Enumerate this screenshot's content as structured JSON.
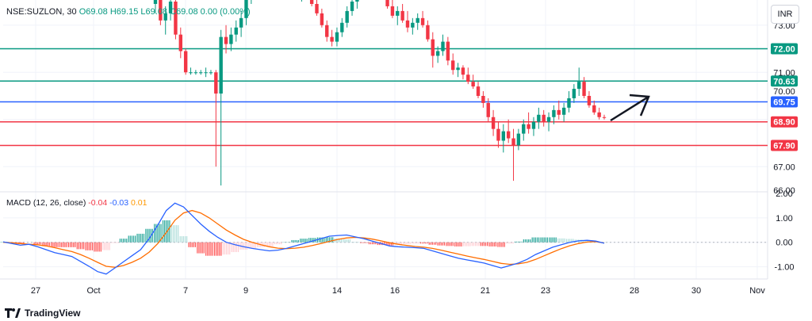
{
  "header": {
    "symbol": "NSE:SUZLON, 30",
    "open": "O69.08",
    "high": "H69.15",
    "low": "L69.08",
    "close": "C69.08",
    "change": "0.00 (0.00%)"
  },
  "currency_label": "INR",
  "brand": "TradingView",
  "colors": {
    "up": "#089981",
    "down": "#f23645",
    "green_level": "#089981",
    "blue_level": "#2962ff",
    "red_level": "#f23645",
    "macd_line": "#2962ff",
    "signal_line": "#ff6d00",
    "grid": "#f0f3fa",
    "axis_text": "#131722"
  },
  "chart_data": [
    {
      "type": "candlestick",
      "title": "NSE:SUZLON, 30",
      "ylim": [
        66.0,
        74.0
      ],
      "y_ticks": [
        "73.00",
        "71.00",
        "70.00",
        "67.00",
        "66.00"
      ],
      "x_ticks": [
        "27",
        "Oct",
        "7",
        "9",
        "14",
        "16",
        "21",
        "23",
        "28",
        "30",
        "Nov"
      ],
      "horizontal_levels": [
        {
          "value": 72.0,
          "label": "72.00",
          "color": "green"
        },
        {
          "value": 70.63,
          "label": "70.63",
          "color": "green"
        },
        {
          "value": 69.75,
          "label": "69.75",
          "color": "blue"
        },
        {
          "value": 68.9,
          "label": "68.90",
          "color": "red"
        },
        {
          "value": 67.9,
          "label": "67.90",
          "color": "red"
        }
      ],
      "last_price": 69.08,
      "annotation": "arrow pointing up-right",
      "series": [
        {
          "name": "price",
          "values": [
            [
              73.9,
              75.0,
              73.5,
              74.6
            ],
            [
              74.6,
              75.2,
              73.0,
              73.2
            ],
            [
              73.2,
              73.8,
              72.6,
              73.5
            ],
            [
              73.5,
              74.4,
              73.2,
              74.0
            ],
            [
              74.0,
              74.2,
              72.4,
              72.6
            ],
            [
              72.6,
              72.9,
              71.6,
              71.9
            ],
            [
              71.9,
              72.0,
              70.9,
              71.0
            ],
            [
              71.0,
              71.2,
              70.9,
              71.0
            ],
            [
              71.0,
              71.1,
              70.9,
              71.0
            ],
            [
              71.0,
              71.1,
              70.9,
              71.0
            ],
            [
              71.0,
              71.2,
              70.8,
              71.0
            ],
            [
              71.0,
              71.1,
              70.9,
              71.0
            ],
            [
              71.0,
              71.1,
              67.0,
              70.1
            ],
            [
              70.1,
              72.8,
              66.2,
              72.5
            ],
            [
              72.5,
              73.0,
              71.8,
              72.2
            ],
            [
              72.2,
              72.9,
              71.9,
              72.6
            ],
            [
              72.6,
              73.2,
              72.3,
              72.9
            ],
            [
              72.9,
              73.6,
              72.5,
              73.3
            ],
            [
              73.3,
              74.4,
              73.0,
              74.2
            ],
            [
              74.2,
              75.0,
              73.9,
              74.8
            ],
            [
              74.8,
              75.3,
              74.5,
              75.0
            ],
            [
              75.0,
              75.5,
              74.8,
              75.2
            ],
            [
              75.2,
              75.6,
              74.9,
              75.0
            ],
            [
              75.0,
              75.3,
              74.7,
              74.9
            ],
            [
              74.9,
              75.2,
              74.6,
              74.8
            ],
            [
              74.8,
              75.0,
              74.5,
              74.6
            ],
            [
              74.6,
              74.9,
              74.3,
              74.7
            ],
            [
              74.7,
              75.0,
              74.4,
              74.5
            ],
            [
              74.5,
              74.8,
              74.2,
              74.3
            ],
            [
              74.3,
              74.6,
              74.0,
              74.4
            ],
            [
              74.4,
              74.7,
              74.1,
              74.2
            ],
            [
              74.2,
              74.4,
              73.8,
              73.9
            ],
            [
              73.9,
              74.1,
              73.4,
              73.5
            ],
            [
              73.5,
              73.7,
              72.9,
              73.0
            ],
            [
              73.0,
              73.2,
              72.3,
              72.5
            ],
            [
              72.5,
              72.8,
              72.1,
              72.3
            ],
            [
              72.3,
              72.9,
              72.1,
              72.7
            ],
            [
              72.7,
              73.3,
              72.5,
              73.1
            ],
            [
              73.1,
              73.8,
              72.9,
              73.6
            ],
            [
              73.6,
              74.2,
              73.4,
              74.0
            ],
            [
              74.0,
              74.5,
              73.7,
              74.3
            ],
            [
              74.3,
              74.8,
              74.1,
              74.6
            ],
            [
              74.6,
              75.0,
              74.3,
              74.5
            ],
            [
              74.5,
              75.1,
              74.2,
              74.9
            ],
            [
              74.9,
              75.2,
              74.6,
              74.7
            ],
            [
              74.7,
              74.9,
              74.1,
              74.2
            ],
            [
              74.2,
              74.4,
              73.7,
              73.8
            ],
            [
              73.8,
              74.1,
              73.3,
              73.4
            ],
            [
              73.4,
              73.8,
              73.0,
              73.6
            ],
            [
              73.6,
              73.9,
              73.1,
              73.2
            ],
            [
              73.2,
              73.6,
              72.7,
              72.9
            ],
            [
              72.9,
              73.3,
              72.6,
              73.1
            ],
            [
              73.1,
              73.5,
              72.8,
              73.3
            ],
            [
              73.3,
              73.6,
              72.9,
              73.0
            ],
            [
              73.0,
              73.2,
              72.3,
              72.4
            ],
            [
              72.4,
              72.7,
              71.2,
              71.7
            ],
            [
              71.7,
              72.1,
              71.4,
              71.9
            ],
            [
              71.9,
              72.6,
              71.7,
              72.3
            ],
            [
              72.3,
              72.5,
              71.3,
              71.5
            ],
            [
              71.5,
              71.8,
              70.9,
              71.1
            ],
            [
              71.1,
              71.4,
              70.8,
              71.2
            ],
            [
              71.2,
              71.3,
              70.7,
              70.9
            ],
            [
              70.9,
              71.2,
              70.5,
              70.6
            ],
            [
              70.6,
              70.9,
              70.3,
              70.4
            ],
            [
              70.4,
              70.6,
              69.9,
              70.0
            ],
            [
              70.0,
              70.2,
              69.5,
              69.7
            ],
            [
              69.7,
              69.9,
              68.9,
              69.1
            ],
            [
              69.1,
              69.4,
              68.3,
              68.6
            ],
            [
              68.6,
              68.9,
              67.8,
              68.1
            ],
            [
              68.1,
              68.8,
              67.6,
              68.5
            ],
            [
              68.5,
              69.0,
              68.0,
              68.2
            ],
            [
              68.2,
              68.6,
              66.4,
              67.9
            ],
            [
              67.9,
              68.6,
              67.7,
              68.4
            ],
            [
              68.4,
              69.0,
              68.1,
              68.8
            ],
            [
              68.8,
              69.3,
              68.4,
              68.6
            ],
            [
              68.6,
              69.1,
              68.3,
              68.9
            ],
            [
              68.9,
              69.5,
              68.6,
              69.2
            ],
            [
              69.2,
              69.4,
              68.7,
              68.9
            ],
            [
              68.9,
              69.3,
              68.5,
              69.1
            ],
            [
              69.1,
              69.6,
              68.8,
              69.4
            ],
            [
              69.4,
              69.8,
              69.0,
              69.2
            ],
            [
              69.2,
              69.7,
              68.9,
              69.5
            ],
            [
              69.5,
              70.2,
              69.3,
              69.9
            ],
            [
              69.9,
              70.5,
              69.7,
              70.3
            ],
            [
              70.3,
              71.2,
              70.0,
              70.6
            ],
            [
              70.6,
              70.8,
              69.9,
              70.0
            ],
            [
              70.0,
              70.2,
              69.5,
              69.6
            ],
            [
              69.6,
              69.8,
              69.2,
              69.3
            ],
            [
              69.3,
              69.5,
              69.0,
              69.1
            ],
            [
              69.1,
              69.2,
              69.0,
              69.08
            ]
          ]
        }
      ]
    },
    {
      "type": "line",
      "title": "MACD (12, 26, close)",
      "legend_values": [
        "-0.04",
        "-0.03",
        "0.01"
      ],
      "ylim": [
        -1.5,
        2.0
      ],
      "y_ticks": [
        "2.00",
        "1.00",
        "0.00",
        "-1.00"
      ],
      "series": [
        {
          "name": "MACD",
          "values": [
            0.02,
            -0.05,
            -0.12,
            -0.08,
            -0.18,
            -0.3,
            -0.42,
            -0.5,
            -0.58,
            -0.78,
            -0.98,
            -1.2,
            -1.3,
            -1.05,
            -0.8,
            -0.55,
            -0.3,
            0.15,
            0.7,
            1.3,
            1.6,
            1.45,
            1.1,
            0.75,
            0.45,
            0.2,
            0.0,
            -0.1,
            -0.18,
            -0.25,
            -0.3,
            -0.35,
            -0.32,
            -0.25,
            -0.15,
            -0.05,
            0.05,
            0.15,
            0.25,
            0.28,
            0.3,
            0.22,
            0.15,
            0.05,
            -0.05,
            -0.15,
            -0.18,
            -0.2,
            -0.22,
            -0.25,
            -0.35,
            -0.45,
            -0.55,
            -0.65,
            -0.72,
            -0.78,
            -0.85,
            -0.95,
            -1.05,
            -0.95,
            -0.85,
            -0.7,
            -0.5,
            -0.35,
            -0.2,
            -0.1,
            0.0,
            0.06,
            0.08,
            0.05,
            -0.04
          ]
        },
        {
          "name": "Signal",
          "values": [
            0.0,
            -0.02,
            -0.05,
            -0.08,
            -0.1,
            -0.15,
            -0.22,
            -0.3,
            -0.38,
            -0.5,
            -0.65,
            -0.82,
            -0.98,
            -1.02,
            -0.95,
            -0.82,
            -0.65,
            -0.4,
            -0.05,
            0.4,
            0.9,
            1.2,
            1.3,
            1.2,
            1.0,
            0.75,
            0.5,
            0.3,
            0.12,
            0.0,
            -0.1,
            -0.18,
            -0.24,
            -0.26,
            -0.24,
            -0.2,
            -0.13,
            -0.05,
            0.04,
            0.12,
            0.18,
            0.2,
            0.18,
            0.13,
            0.06,
            -0.02,
            -0.08,
            -0.13,
            -0.17,
            -0.2,
            -0.25,
            -0.32,
            -0.4,
            -0.48,
            -0.56,
            -0.63,
            -0.7,
            -0.78,
            -0.86,
            -0.9,
            -0.88,
            -0.82,
            -0.7,
            -0.55,
            -0.4,
            -0.26,
            -0.14,
            -0.05,
            0.01,
            0.03,
            -0.03
          ]
        },
        {
          "name": "Histogram",
          "values": [
            0.02,
            -0.03,
            -0.07,
            0.0,
            -0.08,
            -0.15,
            -0.2,
            -0.2,
            -0.2,
            -0.28,
            -0.33,
            -0.38,
            -0.32,
            -0.03,
            0.15,
            0.27,
            0.35,
            0.55,
            0.75,
            0.9,
            0.7,
            0.25,
            -0.2,
            -0.45,
            -0.55,
            -0.55,
            -0.5,
            -0.4,
            -0.3,
            -0.25,
            -0.2,
            -0.17,
            -0.08,
            0.01,
            0.09,
            0.15,
            0.18,
            0.2,
            0.21,
            0.16,
            0.12,
            0.02,
            -0.03,
            -0.08,
            -0.11,
            -0.13,
            -0.1,
            -0.07,
            -0.05,
            -0.05,
            -0.1,
            -0.13,
            -0.15,
            -0.17,
            -0.16,
            -0.15,
            -0.15,
            -0.17,
            -0.19,
            -0.05,
            0.03,
            0.12,
            0.2,
            0.2,
            0.2,
            0.16,
            0.14,
            0.11,
            0.07,
            0.02,
            0.01
          ]
        }
      ]
    }
  ]
}
